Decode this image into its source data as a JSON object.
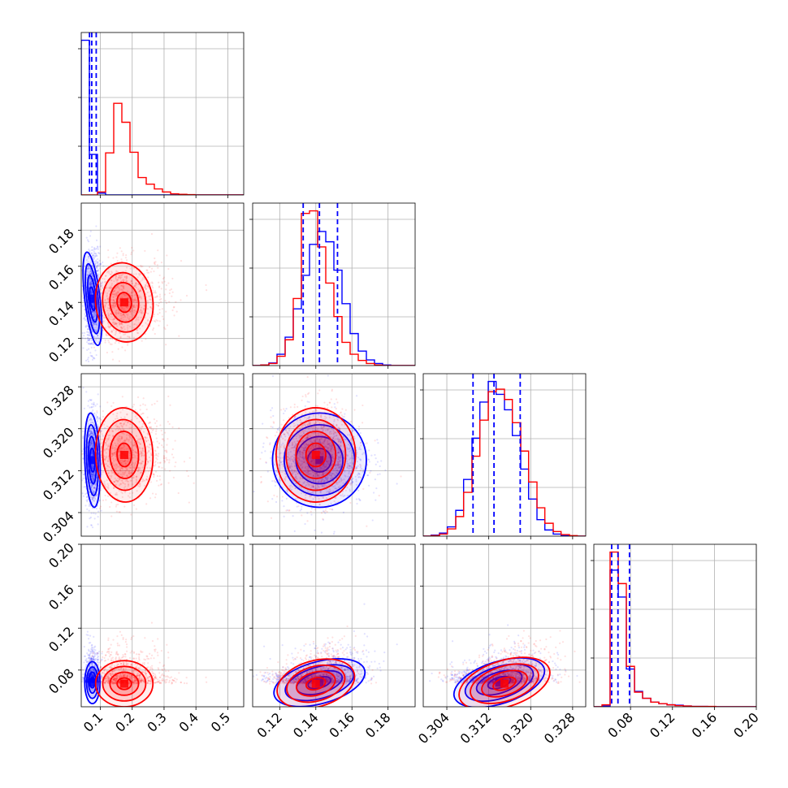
{
  "chart_data": {
    "type": "corner",
    "grid": true,
    "colors": {
      "blue": "#0000ff",
      "red": "#ff0000"
    },
    "series": [
      {
        "color": "#0000ff",
        "mean": [
          0.075,
          0.142,
          0.314,
          0.068
        ],
        "std": [
          0.012,
          0.013,
          0.0045,
          0.01
        ]
      },
      {
        "color": "#ff0000",
        "mean": [
          0.175,
          0.14,
          0.315,
          0.067
        ],
        "std": [
          0.045,
          0.011,
          0.0045,
          0.011
        ]
      }
    ],
    "quantile_lines": {
      "color": "#0000ff",
      "style": "dashed",
      "values": [
        [
          0.066,
          0.073,
          0.087
        ],
        [
          0.133,
          0.142,
          0.152
        ],
        [
          0.309,
          0.313,
          0.318
        ],
        [
          0.062,
          0.068,
          0.079
        ]
      ]
    },
    "axes": [
      {
        "lim": [
          0.04,
          0.55
        ],
        "ticks": [
          0.1,
          0.2,
          0.3,
          0.4,
          0.5
        ],
        "tick_labels": [
          "0.1",
          "0.2",
          "0.3",
          "0.4",
          "0.5"
        ]
      },
      {
        "lim": [
          0.105,
          0.195
        ],
        "ticks": [
          0.12,
          0.14,
          0.16,
          0.18
        ],
        "tick_labels": [
          "0.12",
          "0.14",
          "0.16",
          "0.18"
        ]
      },
      {
        "lim": [
          0.2995,
          0.3305
        ],
        "ticks": [
          0.304,
          0.312,
          0.32,
          0.328
        ],
        "tick_labels": [
          "0.304",
          "0.312",
          "0.320",
          "0.328"
        ]
      },
      {
        "lim": [
          0.045,
          0.2
        ],
        "ticks": [
          0.08,
          0.12,
          0.16,
          0.2
        ],
        "tick_labels": [
          "0.08",
          "0.12",
          "0.16",
          "0.20"
        ]
      }
    ],
    "histograms": [
      {
        "bins": [
          0.04,
          0.0655,
          0.091,
          0.1165,
          0.142,
          0.1675,
          0.193,
          0.2185,
          0.244,
          0.2695,
          0.295,
          0.3205,
          0.346,
          0.3715,
          0.397,
          0.4225,
          0.448,
          0.4735,
          0.499,
          0.5245,
          0.55
        ],
        "blue": [
          5.15,
          1.35,
          0.06,
          0,
          0,
          0,
          0,
          0,
          0,
          0,
          0,
          0,
          0,
          0,
          0,
          0,
          0,
          0,
          0,
          0
        ],
        "red": [
          0,
          0,
          0.1,
          1.4,
          3.05,
          2.42,
          1.42,
          0.58,
          0.36,
          0.2,
          0.1,
          0.04,
          0.02,
          0.01,
          0,
          0,
          0,
          0,
          0,
          0
        ]
      },
      {
        "bins": [
          0.105,
          0.1095,
          0.114,
          0.1185,
          0.123,
          0.1275,
          0.132,
          0.1365,
          0.141,
          0.1455,
          0.15,
          0.1545,
          0.159,
          0.1635,
          0.168,
          0.1725,
          0.177,
          0.1815,
          0.186,
          0.1905,
          0.195
        ],
        "blue": [
          0,
          0.01,
          0.05,
          0.22,
          0.55,
          1.1,
          1.75,
          2.35,
          2.6,
          2.4,
          1.85,
          1.2,
          0.62,
          0.28,
          0.11,
          0.04,
          0.01,
          0,
          0,
          0
        ],
        "red": [
          0,
          0.01,
          0.04,
          0.18,
          0.5,
          1.3,
          2.95,
          3.0,
          2.3,
          1.6,
          0.95,
          0.45,
          0.22,
          0.1,
          0.04,
          0.01,
          0,
          0,
          0,
          0
        ]
      },
      {
        "bins": [
          0.2995,
          0.301,
          0.3026,
          0.3041,
          0.3057,
          0.3072,
          0.3088,
          0.3103,
          0.3119,
          0.3134,
          0.315,
          0.3165,
          0.3181,
          0.3196,
          0.3212,
          0.3227,
          0.3243,
          0.3258,
          0.3274,
          0.3289,
          0.3305
        ],
        "blue": [
          0,
          0.02,
          0.06,
          0.18,
          0.5,
          1.1,
          1.9,
          2.6,
          3.0,
          2.75,
          2.45,
          1.95,
          1.3,
          0.72,
          0.32,
          0.12,
          0.04,
          0.01,
          0,
          0
        ],
        "red": [
          0,
          0.01,
          0.04,
          0.14,
          0.38,
          0.85,
          1.55,
          2.25,
          2.8,
          2.85,
          2.65,
          2.2,
          1.65,
          1.05,
          0.55,
          0.25,
          0.09,
          0.03,
          0.01,
          0
        ]
      },
      {
        "bins": [
          0.045,
          0.0528,
          0.0605,
          0.0683,
          0.076,
          0.0838,
          0.0915,
          0.0993,
          0.107,
          0.1148,
          0.1225,
          0.1303,
          0.138,
          0.1458,
          0.1535,
          0.1613,
          0.169,
          0.1768,
          0.1845,
          0.1923,
          0.2
        ],
        "blue": [
          0,
          0.02,
          3.55,
          2.85,
          0.98,
          0.4,
          0.22,
          0.12,
          0.08,
          0.05,
          0.04,
          0.02,
          0.01,
          0.01,
          0,
          0,
          0,
          0,
          0,
          0
        ],
        "red": [
          0,
          0.05,
          4.02,
          3.2,
          1.05,
          0.38,
          0.22,
          0.12,
          0.08,
          0.05,
          0.03,
          0.02,
          0.01,
          0.01,
          0.01,
          0,
          0,
          0,
          0,
          0
        ]
      }
    ]
  }
}
